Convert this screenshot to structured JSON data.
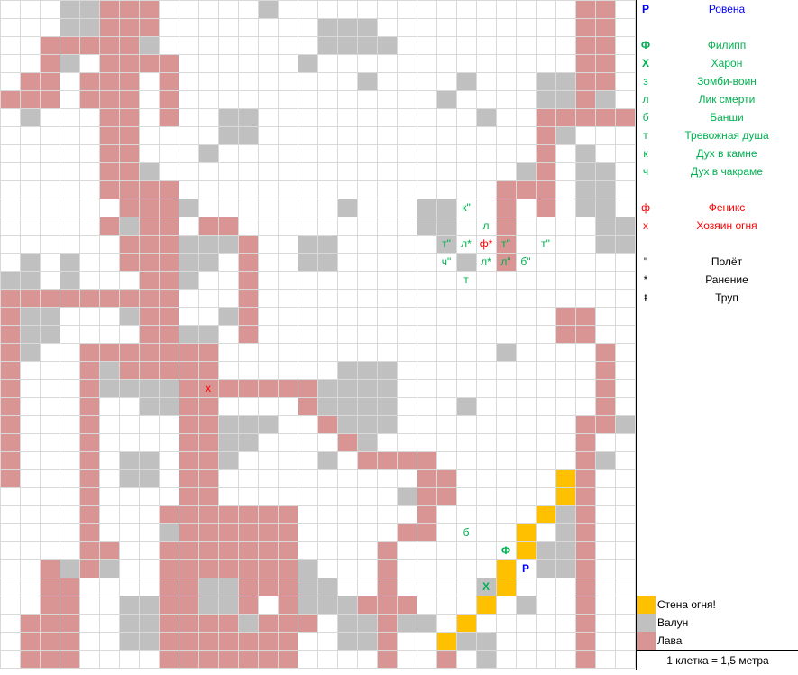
{
  "colors": {
    "lava": "#d99594",
    "boulder": "#c0c0c0",
    "fire_wall": "#ffc000",
    "grid_line": "#d9d9d9",
    "player": "#0000ff",
    "ally": "#00b050",
    "enemy_green": "#00b050",
    "enemy_red": "#ff0000"
  },
  "map": {
    "cols": 32,
    "rows": 37,
    "lava_runs": [
      [
        0,
        5,
        7
      ],
      [
        0,
        29,
        30
      ],
      [
        1,
        5,
        7
      ],
      [
        1,
        29,
        30
      ],
      [
        2,
        2,
        7
      ],
      [
        2,
        29,
        30
      ],
      [
        3,
        2,
        3
      ],
      [
        3,
        5,
        8
      ],
      [
        3,
        29,
        30
      ],
      [
        4,
        1,
        2
      ],
      [
        4,
        4,
        6
      ],
      [
        4,
        8,
        8
      ],
      [
        4,
        29,
        30
      ],
      [
        5,
        0,
        2
      ],
      [
        5,
        4,
        6
      ],
      [
        5,
        8,
        8
      ],
      [
        5,
        29,
        29
      ],
      [
        6,
        5,
        6
      ],
      [
        6,
        8,
        8
      ],
      [
        6,
        27,
        31
      ],
      [
        7,
        5,
        6
      ],
      [
        7,
        27,
        27
      ],
      [
        8,
        5,
        6
      ],
      [
        8,
        27,
        27
      ],
      [
        9,
        5,
        7
      ],
      [
        9,
        27,
        27
      ],
      [
        10,
        5,
        8
      ],
      [
        10,
        25,
        27
      ],
      [
        11,
        6,
        8
      ],
      [
        11,
        25,
        25
      ],
      [
        11,
        27,
        27
      ],
      [
        12,
        5,
        8
      ],
      [
        12,
        10,
        11
      ],
      [
        12,
        25,
        25
      ],
      [
        13,
        6,
        8
      ],
      [
        13,
        12,
        12
      ],
      [
        13,
        25,
        25
      ],
      [
        14,
        6,
        9
      ],
      [
        14,
        12,
        12
      ],
      [
        14,
        25,
        25
      ],
      [
        15,
        0,
        0
      ],
      [
        15,
        7,
        9
      ],
      [
        15,
        12,
        12
      ],
      [
        16,
        0,
        8
      ],
      [
        16,
        12,
        12
      ],
      [
        17,
        0,
        0
      ],
      [
        17,
        7,
        8
      ],
      [
        17,
        12,
        12
      ],
      [
        17,
        28,
        29
      ],
      [
        18,
        0,
        0
      ],
      [
        18,
        7,
        8
      ],
      [
        18,
        12,
        12
      ],
      [
        18,
        28,
        29
      ],
      [
        19,
        0,
        0
      ],
      [
        19,
        4,
        10
      ],
      [
        19,
        30,
        30
      ],
      [
        20,
        0,
        0
      ],
      [
        20,
        4,
        10
      ],
      [
        20,
        30,
        30
      ],
      [
        21,
        0,
        0
      ],
      [
        21,
        4,
        5
      ],
      [
        21,
        9,
        15
      ],
      [
        21,
        30,
        30
      ],
      [
        22,
        0,
        0
      ],
      [
        22,
        4,
        4
      ],
      [
        22,
        9,
        10
      ],
      [
        22,
        15,
        16
      ],
      [
        22,
        30,
        30
      ],
      [
        23,
        0,
        0
      ],
      [
        23,
        4,
        4
      ],
      [
        23,
        9,
        10
      ],
      [
        23,
        16,
        17
      ],
      [
        23,
        29,
        31
      ],
      [
        24,
        0,
        0
      ],
      [
        24,
        4,
        4
      ],
      [
        24,
        9,
        10
      ],
      [
        24,
        17,
        18
      ],
      [
        24,
        29,
        29
      ],
      [
        25,
        0,
        0
      ],
      [
        25,
        4,
        4
      ],
      [
        25,
        9,
        10
      ],
      [
        25,
        18,
        21
      ],
      [
        25,
        29,
        29
      ],
      [
        26,
        0,
        0
      ],
      [
        26,
        4,
        4
      ],
      [
        26,
        9,
        10
      ],
      [
        26,
        21,
        22
      ],
      [
        26,
        29,
        29
      ],
      [
        27,
        4,
        4
      ],
      [
        27,
        9,
        10
      ],
      [
        27,
        21,
        22
      ],
      [
        27,
        29,
        29
      ],
      [
        28,
        4,
        4
      ],
      [
        28,
        8,
        14
      ],
      [
        28,
        21,
        21
      ],
      [
        28,
        29,
        29
      ],
      [
        29,
        4,
        4
      ],
      [
        29,
        8,
        14
      ],
      [
        29,
        20,
        21
      ],
      [
        29,
        29,
        29
      ],
      [
        30,
        4,
        5
      ],
      [
        30,
        8,
        14
      ],
      [
        30,
        19,
        19
      ],
      [
        30,
        29,
        29
      ],
      [
        31,
        2,
        5
      ],
      [
        31,
        8,
        14
      ],
      [
        31,
        19,
        19
      ],
      [
        31,
        29,
        29
      ],
      [
        32,
        2,
        3
      ],
      [
        32,
        8,
        14
      ],
      [
        32,
        19,
        19
      ],
      [
        32,
        29,
        29
      ],
      [
        33,
        2,
        3
      ],
      [
        33,
        8,
        9
      ],
      [
        33,
        12,
        12
      ],
      [
        33,
        14,
        20
      ],
      [
        33,
        29,
        29
      ],
      [
        34,
        1,
        3
      ],
      [
        34,
        8,
        15
      ],
      [
        34,
        19,
        20
      ],
      [
        34,
        29,
        29
      ],
      [
        35,
        1,
        3
      ],
      [
        35,
        8,
        14
      ],
      [
        35,
        19,
        19
      ],
      [
        35,
        22,
        22
      ],
      [
        35,
        29,
        29
      ],
      [
        36,
        1,
        3
      ],
      [
        36,
        8,
        14
      ],
      [
        36,
        19,
        19
      ],
      [
        36,
        22,
        22
      ],
      [
        36,
        29,
        29
      ]
    ],
    "boulder_runs": [
      [
        0,
        3,
        4
      ],
      [
        0,
        13,
        13
      ],
      [
        1,
        3,
        4
      ],
      [
        1,
        16,
        18
      ],
      [
        2,
        7,
        7
      ],
      [
        2,
        16,
        19
      ],
      [
        3,
        3,
        3
      ],
      [
        3,
        15,
        15
      ],
      [
        4,
        18,
        18
      ],
      [
        4,
        23,
        23
      ],
      [
        4,
        27,
        28
      ],
      [
        5,
        22,
        22
      ],
      [
        5,
        27,
        28
      ],
      [
        5,
        30,
        30
      ],
      [
        6,
        1,
        1
      ],
      [
        6,
        11,
        12
      ],
      [
        6,
        24,
        24
      ],
      [
        7,
        11,
        12
      ],
      [
        7,
        28,
        28
      ],
      [
        8,
        10,
        10
      ],
      [
        8,
        29,
        29
      ],
      [
        9,
        7,
        7
      ],
      [
        9,
        26,
        26
      ],
      [
        9,
        29,
        30
      ],
      [
        10,
        29,
        30
      ],
      [
        11,
        9,
        9
      ],
      [
        11,
        17,
        17
      ],
      [
        11,
        21,
        22
      ],
      [
        11,
        29,
        30
      ],
      [
        12,
        6,
        6
      ],
      [
        12,
        21,
        22
      ],
      [
        12,
        30,
        31
      ],
      [
        13,
        9,
        11
      ],
      [
        13,
        15,
        16
      ],
      [
        13,
        22,
        22
      ],
      [
        13,
        30,
        31
      ],
      [
        14,
        1,
        1
      ],
      [
        14,
        3,
        3
      ],
      [
        14,
        9,
        10
      ],
      [
        14,
        15,
        16
      ],
      [
        14,
        23,
        23
      ],
      [
        15,
        0,
        1
      ],
      [
        15,
        3,
        3
      ],
      [
        15,
        9,
        9
      ],
      [
        17,
        1,
        2
      ],
      [
        17,
        6,
        6
      ],
      [
        17,
        11,
        11
      ],
      [
        18,
        1,
        2
      ],
      [
        18,
        9,
        10
      ],
      [
        19,
        1,
        1
      ],
      [
        19,
        25,
        25
      ],
      [
        20,
        5,
        5
      ],
      [
        20,
        17,
        19
      ],
      [
        21,
        5,
        6
      ],
      [
        21,
        7,
        8
      ],
      [
        21,
        16,
        19
      ],
      [
        22,
        7,
        8
      ],
      [
        22,
        16,
        19
      ],
      [
        22,
        23,
        23
      ],
      [
        23,
        11,
        13
      ],
      [
        23,
        17,
        19
      ],
      [
        23,
        31,
        31
      ],
      [
        24,
        11,
        12
      ],
      [
        24,
        18,
        18
      ],
      [
        25,
        6,
        7
      ],
      [
        25,
        11,
        11
      ],
      [
        25,
        16,
        16
      ],
      [
        25,
        30,
        30
      ],
      [
        26,
        6,
        7
      ],
      [
        27,
        20,
        20
      ],
      [
        28,
        28,
        28
      ],
      [
        29,
        8,
        8
      ],
      [
        29,
        28,
        28
      ],
      [
        30,
        27,
        28
      ],
      [
        31,
        3,
        3
      ],
      [
        31,
        5,
        5
      ],
      [
        31,
        15,
        15
      ],
      [
        31,
        27,
        28
      ],
      [
        32,
        10,
        11
      ],
      [
        32,
        15,
        16
      ],
      [
        32,
        24,
        25
      ],
      [
        33,
        6,
        7
      ],
      [
        33,
        10,
        11
      ],
      [
        33,
        15,
        17
      ],
      [
        33,
        26,
        26
      ],
      [
        34,
        6,
        7
      ],
      [
        34,
        12,
        12
      ],
      [
        34,
        17,
        18
      ],
      [
        34,
        20,
        21
      ],
      [
        35,
        6,
        7
      ],
      [
        35,
        17,
        18
      ],
      [
        35,
        22,
        24
      ],
      [
        36,
        24,
        24
      ]
    ],
    "fire_wall_cells": [
      [
        26,
        28
      ],
      [
        27,
        28
      ],
      [
        28,
        27
      ],
      [
        29,
        26
      ],
      [
        30,
        26
      ],
      [
        31,
        25
      ],
      [
        32,
        25
      ],
      [
        33,
        24
      ],
      [
        34,
        23
      ],
      [
        35,
        22
      ]
    ]
  },
  "tokens": [
    {
      "r": 11,
      "c": 23,
      "text": "к\"",
      "kind": "enemy_green"
    },
    {
      "r": 12,
      "c": 24,
      "text": "л",
      "kind": "enemy_green"
    },
    {
      "r": 13,
      "c": 22,
      "text": "т\"",
      "kind": "enemy_green"
    },
    {
      "r": 13,
      "c": 23,
      "text": "л*",
      "kind": "enemy_green"
    },
    {
      "r": 13,
      "c": 24,
      "text": "ф*",
      "kind": "enemy_red"
    },
    {
      "r": 13,
      "c": 25,
      "text": "т\"",
      "kind": "enemy_green"
    },
    {
      "r": 13,
      "c": 27,
      "text": "т\"",
      "kind": "enemy_green"
    },
    {
      "r": 14,
      "c": 22,
      "text": "ч\"",
      "kind": "enemy_green"
    },
    {
      "r": 14,
      "c": 24,
      "text": "л*",
      "kind": "enemy_green"
    },
    {
      "r": 14,
      "c": 25,
      "text": "л\"",
      "kind": "enemy_green"
    },
    {
      "r": 14,
      "c": 26,
      "text": "б\"",
      "kind": "enemy_green"
    },
    {
      "r": 15,
      "c": 23,
      "text": "т",
      "kind": "enemy_green"
    },
    {
      "r": 21,
      "c": 10,
      "text": "х",
      "kind": "enemy_red"
    },
    {
      "r": 29,
      "c": 23,
      "text": "б",
      "kind": "enemy_green"
    },
    {
      "r": 30,
      "c": 25,
      "text": "Ф",
      "kind": "ally"
    },
    {
      "r": 31,
      "c": 26,
      "text": "Р",
      "kind": "player"
    },
    {
      "r": 32,
      "c": 24,
      "text": "Х",
      "kind": "ally"
    }
  ],
  "legend": {
    "entries": [
      {
        "sym": "Р",
        "name": "Ровена",
        "kind": "player"
      },
      {
        "sym": "",
        "name": "",
        "kind": "blank"
      },
      {
        "sym": "Ф",
        "name": "Филипп",
        "kind": "ally"
      },
      {
        "sym": "Х",
        "name": "Харон",
        "kind": "ally"
      },
      {
        "sym": "з",
        "name": "Зомби-воин",
        "kind": "enemy_green"
      },
      {
        "sym": "л",
        "name": "Лик смерти",
        "kind": "enemy_green"
      },
      {
        "sym": "б",
        "name": "Банши",
        "kind": "enemy_green"
      },
      {
        "sym": "т",
        "name": "Тревожная душа",
        "kind": "enemy_green"
      },
      {
        "sym": "к",
        "name": "Дух в камне",
        "kind": "enemy_green"
      },
      {
        "sym": "ч",
        "name": "Дух в чакраме",
        "kind": "enemy_green"
      },
      {
        "sym": "",
        "name": "",
        "kind": "blank"
      },
      {
        "sym": "ф",
        "name": "Феникс",
        "kind": "enemy_red"
      },
      {
        "sym": "х",
        "name": "Хозяин огня",
        "kind": "enemy_red"
      },
      {
        "sym": "",
        "name": "",
        "kind": "blank"
      },
      {
        "sym": "\"",
        "name": "Полёт",
        "kind": "status"
      },
      {
        "sym": "*",
        "name": "Ранение",
        "kind": "status"
      },
      {
        "sym": "ŧ",
        "name": "Труп",
        "kind": "status"
      }
    ],
    "terrain": [
      {
        "label": "Стена огня!",
        "color_key": "fire_wall"
      },
      {
        "label": "Валун",
        "color_key": "boulder"
      },
      {
        "label": "Лава",
        "color_key": "lava"
      }
    ],
    "scale": "1 клетка = 1,5 метра"
  }
}
